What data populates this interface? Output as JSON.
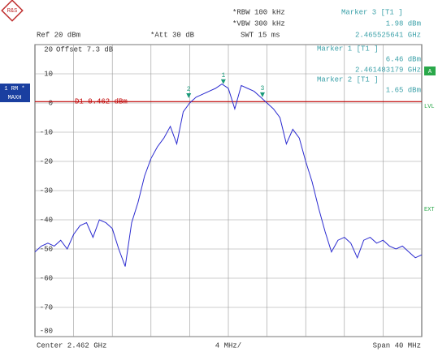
{
  "chart_data": {
    "type": "spectrum",
    "labels": {
      "ref": "Ref  20 dBm",
      "att": "*Att  30 dB",
      "rbw": "*RBW 100 kHz",
      "vbw": "*VBW 300 kHz",
      "swt": "SWT 15 ms",
      "offset": "Offset  7.3 dB",
      "center": "Center  2.462 GHz",
      "div": "4 MHz/",
      "span": "Span  40 MHz",
      "rm": "1 RM *",
      "maxh": "MAXH",
      "a": "A",
      "lvl": "LVL",
      "ext": "EXT"
    },
    "center_ghz": 2.462,
    "span_mhz": 40,
    "color": "#2b2bd0",
    "values": [
      -51,
      -49,
      -48,
      -49,
      -47,
      -50,
      -45,
      -42,
      -41,
      -46,
      -40,
      -41,
      -43,
      -50,
      -56,
      -41,
      -34,
      -25,
      -19,
      -15,
      -12,
      -8,
      -14,
      -3,
      0,
      2,
      3,
      4,
      5,
      6.5,
      5,
      -2,
      6,
      5,
      4,
      2,
      0,
      -2,
      -5,
      -14,
      -9,
      -12,
      -20,
      -27,
      -36,
      -44,
      -51,
      -47,
      -46,
      -48,
      -53,
      -47,
      -46,
      -48,
      -47,
      -49,
      -50,
      -49,
      -51,
      -53,
      -52
    ],
    "display_line": {
      "label": "D1 0.462 dBm",
      "value": 0.462,
      "color": "#c00000"
    },
    "markers": [
      {
        "symbol": "3",
        "label": "Marker 3 [T1 ]",
        "level": 1.98,
        "level_label": "1.98 dBm",
        "frequency_ghz": 2.465525641,
        "frequency_label": "2.465525641 GHz"
      },
      {
        "symbol": "1",
        "label": "Marker 1 [T1 ]",
        "level": 6.46,
        "level_label": "6.46 dBm",
        "frequency_ghz": 2.461483179,
        "frequency_label": "2.461483179 GHz"
      },
      {
        "symbol": "2",
        "label": "Marker 2 [T1 ]",
        "level": 1.65,
        "level_label": "1.65 dBm",
        "frequency_ghz": 2.4579
      }
    ],
    "marker_color": "#1a9a7a",
    "ylim": [
      -80,
      20
    ],
    "yticks": [
      20,
      10,
      0,
      -10,
      -20,
      -30,
      -40,
      -50,
      -60,
      -70,
      -80
    ],
    "grid": true
  }
}
